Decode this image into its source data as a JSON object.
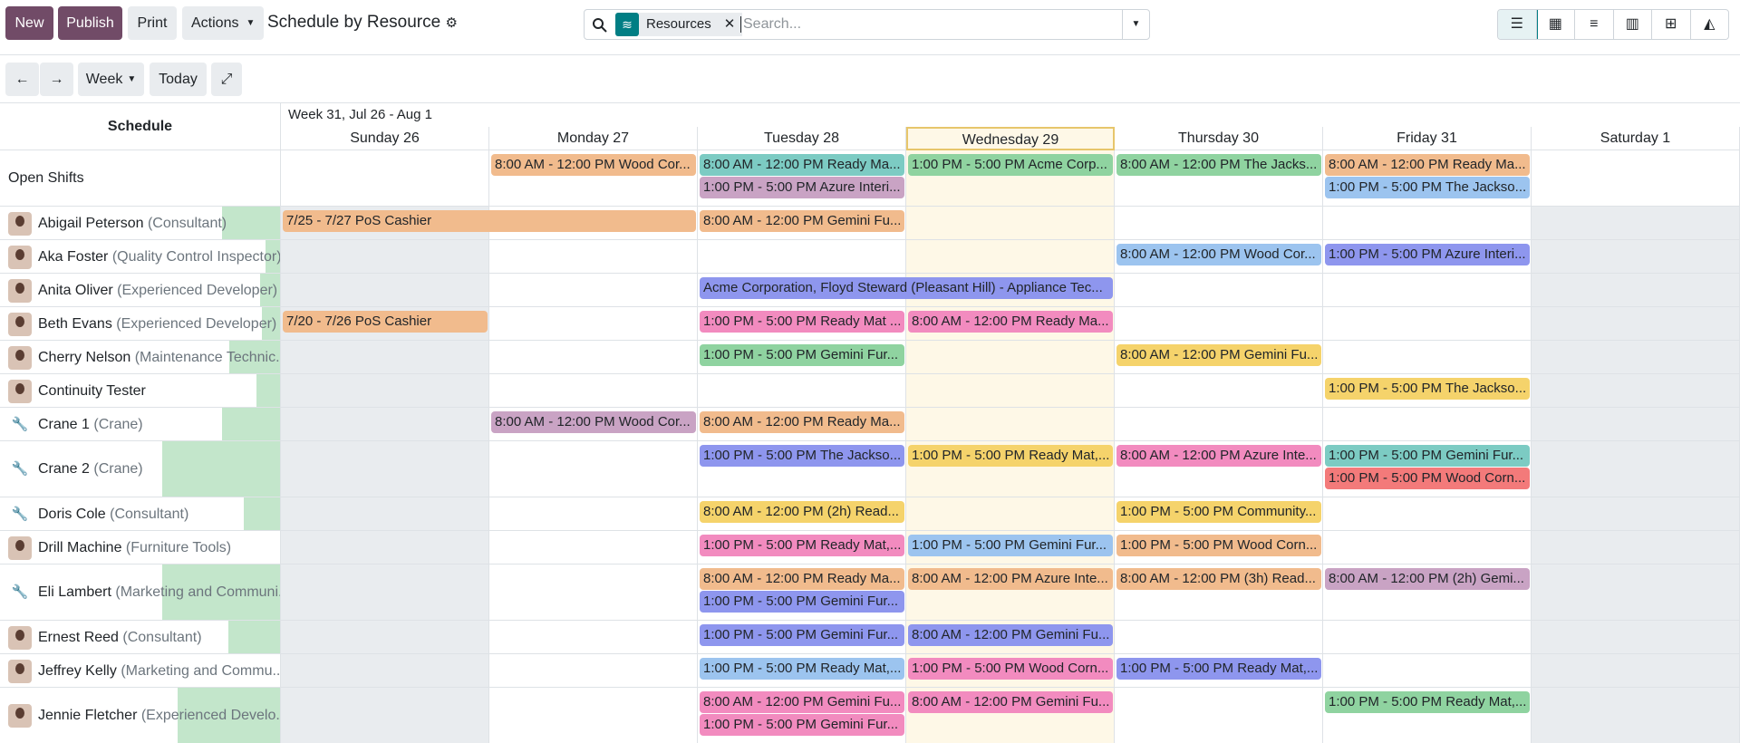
{
  "toolbar": {
    "buttons": [
      "New",
      "Publish",
      "Print",
      "Actions"
    ],
    "title": "Schedule by Resource",
    "facet": "Resources",
    "search_placeholder": "Search..."
  },
  "nav": {
    "scale": "Week",
    "today": "Today"
  },
  "schedule": {
    "header": "Schedule",
    "week": "Week 31, Jul 26 - Aug 1",
    "days": [
      "Sunday 26",
      "Monday 27",
      "Tuesday 28",
      "Wednesday 29",
      "Thursday 30",
      "Friday 31",
      "Saturday 1"
    ],
    "rows": [
      {
        "name": "Open Shifts",
        "cells": [
          [],
          [
            {
              "text": "8:00 AM - 12:00 PM Wood Cor...",
              "color": "#f1bb8d"
            }
          ],
          [
            {
              "text": "8:00 AM - 12:00 PM Ready Ma...",
              "color": "#7ccbc3"
            },
            {
              "text": "1:00 PM - 5:00 PM Azure Interi...",
              "color": "#c9a3c4"
            }
          ],
          [
            {
              "text": "1:00 PM - 5:00 PM Acme Corp...",
              "color": "#8fd3a0"
            }
          ],
          [
            {
              "text": "8:00 AM - 12:00 PM The Jacks...",
              "color": "#8fd3a0"
            }
          ],
          [
            {
              "text": "8:00 AM - 12:00 PM Ready Ma...",
              "color": "#f1bb8d"
            },
            {
              "text": "1:00 PM - 5:00 PM The Jackso...",
              "color": "#9cc4ef"
            }
          ],
          []
        ]
      },
      {
        "name": "Abigail Peterson",
        "role": "(Consultant)",
        "cells": [
          [
            {
              "text": "7/25 - 7/27 PoS Cashier",
              "color": "#f1bb8d",
              "span": 2
            }
          ],
          [],
          [
            {
              "text": "8:00 AM - 12:00 PM Gemini Fu...",
              "color": "#f1bb8d"
            }
          ],
          [],
          [],
          [],
          []
        ]
      },
      {
        "name": "Aka Foster",
        "role": "(Quality Control Inspector)",
        "cells": [
          [],
          [],
          [],
          [],
          [
            {
              "text": "8:00 AM - 12:00 PM Wood Cor...",
              "color": "#9cc4ef"
            }
          ],
          [
            {
              "text": "1:00 PM - 5:00 PM Azure Interi...",
              "color": "#8e96ee"
            }
          ],
          []
        ]
      },
      {
        "name": "Anita Oliver",
        "role": "(Experienced Developer)",
        "cells": [
          [],
          [],
          [
            {
              "text": "Acme Corporation, Floyd Steward (Pleasant Hill) - Appliance Tec...",
              "color": "#8e96ee",
              "span": 2
            }
          ],
          [],
          [],
          [],
          []
        ]
      },
      {
        "name": "Beth Evans",
        "role": "(Experienced Developer)",
        "cells": [
          [
            {
              "text": "7/20 - 7/26 PoS Cashier",
              "color": "#f1bb8d"
            }
          ],
          [],
          [
            {
              "text": "1:00 PM - 5:00 PM Ready Mat ...",
              "color": "#f28bbf"
            }
          ],
          [
            {
              "text": "8:00 AM - 12:00 PM Ready Ma...",
              "color": "#f28bbf"
            }
          ],
          [],
          [],
          []
        ]
      },
      {
        "name": "Cherry Nelson",
        "role": "(Maintenance Technic...",
        "cells": [
          [],
          [],
          [
            {
              "text": "1:00 PM - 5:00 PM Gemini Fur...",
              "color": "#8fd3a0"
            }
          ],
          [],
          [
            {
              "text": "8:00 AM - 12:00 PM Gemini Fu...",
              "color": "#f5d36b"
            }
          ],
          [],
          []
        ]
      },
      {
        "name": "Continuity Tester",
        "cells": [
          [],
          [],
          [],
          [],
          [],
          [
            {
              "text": "1:00 PM - 5:00 PM The Jackso...",
              "color": "#f5d36b"
            }
          ],
          []
        ]
      },
      {
        "name": "Crane 1",
        "role": "(Crane)",
        "cells": [
          [],
          [
            {
              "text": "8:00 AM - 12:00 PM Wood Cor...",
              "color": "#c9a3c4"
            }
          ],
          [
            {
              "text": "8:00 AM - 12:00 PM Ready Ma...",
              "color": "#f1bb8d"
            }
          ],
          [],
          [],
          [],
          []
        ]
      },
      {
        "name": "Crane 2",
        "role": "(Crane)",
        "cells": [
          [],
          [],
          [
            {
              "text": "1:00 PM - 5:00 PM The Jackso...",
              "color": "#8e96ee"
            }
          ],
          [
            {
              "text": "1:00 PM - 5:00 PM Ready Mat,...",
              "color": "#f5d36b"
            }
          ],
          [
            {
              "text": "8:00 AM - 12:00 PM Azure Inte...",
              "color": "#f28bbf"
            }
          ],
          [
            {
              "text": "1:00 PM - 5:00 PM Gemini Fur...",
              "color": "#7ccbc3"
            },
            {
              "text": "1:00 PM - 5:00 PM Wood Corn...",
              "color": "#f37a7a"
            }
          ],
          []
        ]
      },
      {
        "name": "Doris Cole",
        "role": "(Consultant)",
        "cells": [
          [],
          [],
          [
            {
              "text": "8:00 AM - 12:00 PM (2h) Read...",
              "color": "#f5d36b"
            }
          ],
          [],
          [
            {
              "text": "1:00 PM - 5:00 PM Community...",
              "color": "#f5d36b"
            }
          ],
          [],
          []
        ]
      },
      {
        "name": "Drill Machine",
        "role": "(Furniture Tools)",
        "cells": [
          [],
          [],
          [
            {
              "text": "1:00 PM - 5:00 PM Ready Mat,...",
              "color": "#f28bbf"
            }
          ],
          [
            {
              "text": "1:00 PM - 5:00 PM Gemini Fur...",
              "color": "#9cc4ef"
            }
          ],
          [
            {
              "text": "1:00 PM - 5:00 PM Wood Corn...",
              "color": "#f1bb8d"
            }
          ],
          [],
          []
        ]
      },
      {
        "name": "Eli Lambert",
        "role": "(Marketing and Communi...",
        "cells": [
          [],
          [],
          [
            {
              "text": "8:00 AM - 12:00 PM Ready Ma...",
              "color": "#f1bb8d"
            },
            {
              "text": "1:00 PM - 5:00 PM Gemini Fur...",
              "color": "#8e96ee"
            }
          ],
          [
            {
              "text": "8:00 AM - 12:00 PM Azure Inte...",
              "color": "#f1bb8d"
            }
          ],
          [
            {
              "text": "8:00 AM - 12:00 PM (3h) Read...",
              "color": "#f1bb8d"
            }
          ],
          [
            {
              "text": "8:00 AM - 12:00 PM (2h) Gemi...",
              "color": "#c9a3c4"
            }
          ],
          []
        ]
      },
      {
        "name": "Ernest Reed",
        "role": "(Consultant)",
        "cells": [
          [],
          [],
          [
            {
              "text": "1:00 PM - 5:00 PM Gemini Fur...",
              "color": "#8e96ee"
            }
          ],
          [
            {
              "text": "8:00 AM - 12:00 PM Gemini Fu...",
              "color": "#8e96ee"
            }
          ],
          [],
          [],
          []
        ]
      },
      {
        "name": "Jeffrey Kelly",
        "role": "(Marketing and Commu...",
        "cells": [
          [],
          [],
          [
            {
              "text": "1:00 PM - 5:00 PM Ready Mat,...",
              "color": "#9cc4ef"
            }
          ],
          [
            {
              "text": "1:00 PM - 5:00 PM Wood Corn...",
              "color": "#f28bbf"
            }
          ],
          [
            {
              "text": "1:00 PM - 5:00 PM Ready Mat,...",
              "color": "#8e96ee"
            }
          ],
          [],
          []
        ]
      },
      {
        "name": "Jennie Fletcher",
        "role": "(Experienced Develo...",
        "cells": [
          [],
          [],
          [
            {
              "text": "8:00 AM - 12:00 PM Gemini Fu...",
              "color": "#f28bbf"
            },
            {
              "text": "1:00 PM - 5:00 PM Gemini Fur...",
              "color": "#f28bbf"
            }
          ],
          [
            {
              "text": "8:00 AM - 12:00 PM Gemini Fu...",
              "color": "#f28bbf"
            }
          ],
          [],
          [
            {
              "text": "1:00 PM - 5:00 PM Ready Mat,...",
              "color": "#8fd3a0"
            }
          ],
          []
        ]
      }
    ]
  }
}
